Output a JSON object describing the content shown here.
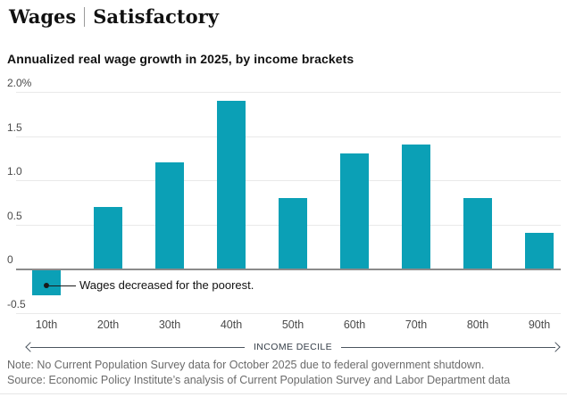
{
  "header": {
    "kicker": "Wages",
    "status": "Satisfactory"
  },
  "chart_data": {
    "type": "bar",
    "title": "Annualized real wage growth in 2025, by income brackets",
    "categories": [
      "10th",
      "20th",
      "30th",
      "40th",
      "50th",
      "60th",
      "70th",
      "80th",
      "90th"
    ],
    "values": [
      -0.3,
      0.7,
      1.2,
      1.9,
      0.8,
      1.3,
      1.4,
      0.8,
      0.4
    ],
    "xlabel": "INCOME DECILE",
    "ylabel": "",
    "ylim": [
      -0.5,
      2.0
    ],
    "y_ticks": [
      {
        "value": 2.0,
        "label": "2.0%"
      },
      {
        "value": 1.5,
        "label": "1.5"
      },
      {
        "value": 1.0,
        "label": "1.0"
      },
      {
        "value": 0.5,
        "label": "0.5"
      },
      {
        "value": 0,
        "label": "0"
      },
      {
        "value": -0.5,
        "label": "-0.5"
      }
    ],
    "grid": true,
    "legend": false,
    "bar_color": "#0ba0b6",
    "zero_line_color": "#8b8b8b",
    "annotation": {
      "text": "Wages decreased for the poorest.",
      "target_category": "10th"
    }
  },
  "footer": {
    "note": "Note: No Current Population Survey data for October 2025 due to federal government shutdown.",
    "source": "Source: Economic Policy Institute’s analysis of Current Population Survey and Labor Department data"
  }
}
